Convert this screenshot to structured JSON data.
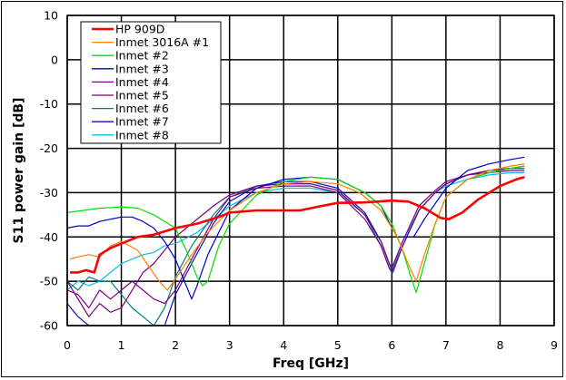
{
  "chart_data": {
    "type": "line",
    "title": "",
    "xlabel": "Freq [GHz]",
    "ylabel": "S11 power gain [dB]",
    "xlim": [
      0,
      9
    ],
    "ylim": [
      -60,
      10
    ],
    "xticks": [
      "0",
      "1",
      "2",
      "3",
      "4",
      "5",
      "6",
      "7",
      "8",
      "9"
    ],
    "yticks": [
      "10",
      "0",
      "-10",
      "-20",
      "-30",
      "-40",
      "-50",
      "-60"
    ],
    "grid": true,
    "legend_position": "upper-left",
    "series": [
      {
        "name": "HP 909D",
        "color": "#ff0000",
        "width": 2.6,
        "x": [
          0.05,
          0.2,
          0.35,
          0.5,
          0.6,
          0.8,
          1.0,
          1.3,
          1.6,
          2.0,
          2.4,
          2.8,
          3.0,
          3.5,
          4.0,
          4.3,
          4.7,
          5.0,
          5.5,
          6.0,
          6.3,
          6.6,
          6.9,
          7.05,
          7.3,
          7.6,
          8.0,
          8.3,
          8.45
        ],
        "y": [
          -48,
          -48,
          -47.5,
          -48,
          -44,
          -42.5,
          -41.5,
          -40,
          -39.5,
          -38,
          -37,
          -35.5,
          -34.5,
          -34,
          -34,
          -34,
          -33,
          -32.3,
          -32.2,
          -31.8,
          -32,
          -33.5,
          -35.7,
          -36,
          -34.5,
          -31.5,
          -28.5,
          -27,
          -26.5
        ]
      },
      {
        "name": "Inmet 3016A #1",
        "color": "#ff7f00",
        "width": 1.2,
        "x": [
          0.05,
          0.2,
          0.4,
          0.6,
          0.8,
          1.0,
          1.3,
          1.5,
          1.7,
          1.85,
          2.0,
          2.3,
          2.6,
          3.0,
          3.5,
          4.0,
          4.5,
          5.0,
          5.4,
          5.8,
          6.1,
          6.3,
          6.45,
          6.6,
          6.8,
          7.0,
          7.4,
          7.8,
          8.2,
          8.45
        ],
        "y": [
          -45,
          -44.5,
          -44,
          -44.5,
          -42,
          -41,
          -43,
          -46.5,
          -50,
          -52,
          -49.5,
          -44,
          -39,
          -34,
          -30,
          -28,
          -27.5,
          -28,
          -30,
          -34,
          -40,
          -46,
          -50,
          -44,
          -37,
          -31,
          -27,
          -25,
          -24,
          -23.5
        ]
      },
      {
        "name": "Inmet #2",
        "color": "#00e000",
        "width": 1.2,
        "x": [
          0.0,
          0.3,
          0.6,
          1.0,
          1.3,
          1.6,
          2.0,
          2.2,
          2.4,
          2.5,
          2.6,
          2.8,
          3.0,
          3.5,
          4.0,
          4.5,
          5.0,
          5.5,
          5.8,
          6.0,
          6.2,
          6.35,
          6.45,
          6.6,
          6.8,
          7.0,
          7.4,
          7.8,
          8.2,
          8.45
        ],
        "y": [
          -34.5,
          -34,
          -33.5,
          -33.2,
          -33.5,
          -35,
          -38,
          -43,
          -49,
          -51,
          -50,
          -42,
          -37,
          -30.5,
          -27.5,
          -26.5,
          -27,
          -30,
          -33,
          -37,
          -43,
          -49,
          -52.5,
          -46,
          -37,
          -31,
          -27,
          -25.5,
          -24.5,
          -24
        ]
      },
      {
        "name": "Inmet #3",
        "color": "#0000c8",
        "width": 1.2,
        "x": [
          0.0,
          0.2,
          0.4,
          0.6,
          0.8,
          1.0,
          1.2,
          1.4,
          1.6,
          1.8,
          2.0,
          2.2,
          2.3,
          2.4,
          2.6,
          3.0,
          3.5,
          4.0,
          4.5,
          5.0,
          5.5,
          5.8,
          6.0,
          6.1,
          6.2,
          6.4,
          6.6,
          7.0,
          7.4,
          7.8,
          8.2,
          8.45
        ],
        "y": [
          -38,
          -37.5,
          -37.5,
          -36.5,
          -36,
          -35.5,
          -35.5,
          -36.5,
          -38,
          -41,
          -45,
          -51,
          -54,
          -51,
          -44,
          -34,
          -29,
          -27,
          -26.5,
          -27,
          -30,
          -33,
          -38,
          -40,
          -40,
          -40,
          -36,
          -29,
          -25,
          -23.5,
          -22.5,
          -22
        ]
      },
      {
        "name": "Inmet #4",
        "color": "#800080",
        "width": 1.2,
        "x": [
          0.0,
          0.2,
          0.4,
          0.6,
          0.8,
          1.0,
          1.2,
          1.4,
          1.6,
          1.8,
          2.0,
          2.3,
          2.7,
          3.0,
          3.5,
          4.0,
          4.5,
          5.0,
          5.5,
          5.8,
          5.95,
          6.0,
          6.2,
          6.5,
          6.8,
          7.0,
          7.4,
          7.8,
          8.2,
          8.45
        ],
        "y": [
          -52,
          -53,
          -56,
          -52,
          -54,
          -52,
          -50,
          -52,
          -54,
          -55,
          -52,
          -45,
          -36,
          -31,
          -29,
          -28.5,
          -28.5,
          -30,
          -36,
          -42,
          -47,
          -48,
          -42,
          -34,
          -30,
          -28,
          -26,
          -25,
          -24.5,
          -24
        ]
      },
      {
        "name": "Inmet #5",
        "color": "#7a007a",
        "width": 1.2,
        "x": [
          0.0,
          0.2,
          0.4,
          0.6,
          0.8,
          1.0,
          1.2,
          1.4,
          1.6,
          1.8,
          2.0,
          2.3,
          2.7,
          3.0,
          3.5,
          4.0,
          4.5,
          5.0,
          5.5,
          5.8,
          5.95,
          6.0,
          6.2,
          6.5,
          6.8,
          7.0,
          7.4,
          7.8,
          8.2,
          8.45
        ],
        "y": [
          -50,
          -54,
          -58,
          -55,
          -57,
          -56,
          -52,
          -48,
          -46,
          -43,
          -40,
          -37,
          -33,
          -30.5,
          -28.5,
          -28,
          -28,
          -29.5,
          -35,
          -41,
          -46,
          -47,
          -41,
          -33,
          -29.5,
          -27.5,
          -26,
          -25.5,
          -25,
          -25
        ]
      },
      {
        "name": "Inmet #6",
        "color": "#008080",
        "width": 1.2,
        "x": [
          0.0,
          0.2,
          0.4,
          0.6,
          0.8,
          1.0,
          1.2,
          1.4,
          1.6,
          1.8,
          2.0,
          2.3,
          2.7,
          3.0,
          3.5,
          4.0,
          4.5,
          5.0,
          5.5,
          5.8,
          5.95,
          6.02,
          6.2,
          6.5,
          6.8,
          7.0,
          7.4,
          7.8,
          8.2,
          8.45
        ],
        "y": [
          -50,
          -52,
          -49,
          -50,
          -50,
          -53,
          -56,
          -58,
          -60,
          -56,
          -49,
          -42,
          -35,
          -31,
          -28.5,
          -28,
          -28,
          -29.5,
          -35,
          -42,
          -47,
          -48,
          -42,
          -34,
          -30,
          -28,
          -26,
          -25,
          -24.5,
          -24.5
        ]
      },
      {
        "name": "Inmet #7",
        "color": "#1010c0",
        "width": 1.2,
        "x": [
          0.0,
          0.2,
          0.4,
          0.6,
          0.8,
          1.0,
          1.2,
          1.4,
          1.6,
          1.8,
          2.0,
          2.3,
          2.7,
          3.0,
          3.5,
          4.0,
          4.5,
          5.0,
          5.5,
          5.8,
          5.95,
          6.02,
          6.2,
          6.5,
          6.8,
          7.0,
          7.4,
          7.8,
          8.2,
          8.45
        ],
        "y": [
          -55,
          -58,
          -60,
          -60,
          -60,
          -60,
          -60,
          -60,
          -60,
          -60,
          -53,
          -46,
          -37,
          -32,
          -28.5,
          -27.5,
          -27.5,
          -29,
          -34.5,
          -41,
          -46,
          -48,
          -42,
          -34,
          -30,
          -28,
          -26,
          -25,
          -24.5,
          -24.5
        ]
      },
      {
        "name": "Inmet #8",
        "color": "#00c0f0",
        "width": 1.2,
        "x": [
          0.0,
          0.2,
          0.4,
          0.6,
          0.8,
          1.0,
          1.2,
          1.4,
          1.6,
          1.8,
          2.0,
          2.4,
          2.8,
          3.0,
          3.5,
          4.0,
          4.5,
          5.0,
          5.5,
          5.8,
          5.95,
          6.02,
          6.2,
          6.5,
          6.8,
          7.0,
          7.4,
          7.8,
          8.2,
          8.45
        ],
        "y": [
          -52,
          -50,
          -51,
          -50,
          -48,
          -46,
          -45,
          -44,
          -43.5,
          -42,
          -41.5,
          -39,
          -35,
          -33,
          -30,
          -29,
          -29,
          -30,
          -35,
          -41,
          -46,
          -47,
          -41,
          -34,
          -30,
          -28.5,
          -27,
          -26,
          -25.5,
          -25.5
        ]
      }
    ]
  },
  "legend": {
    "items": [
      "HP 909D",
      "Inmet 3016A #1",
      "Inmet #2",
      "Inmet #3",
      "Inmet #4",
      "Inmet #5",
      "Inmet #6",
      "Inmet #7",
      "Inmet #8"
    ]
  }
}
